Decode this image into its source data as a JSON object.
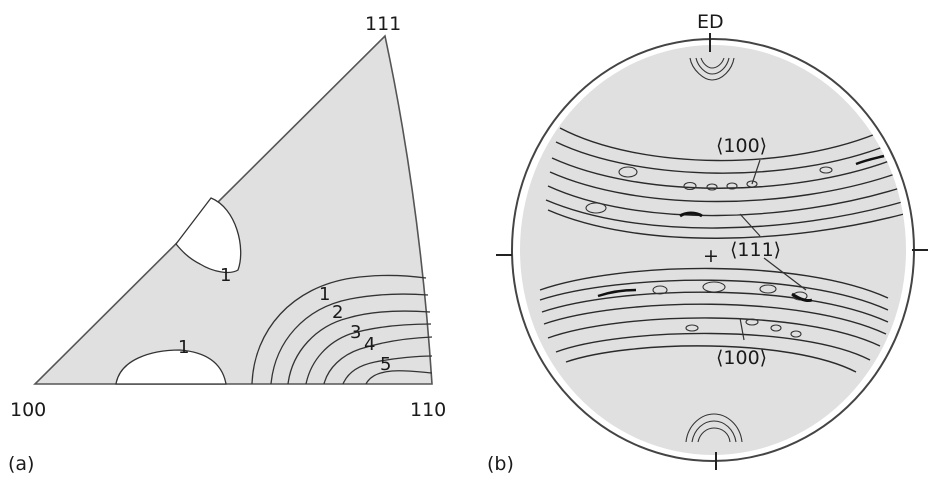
{
  "panel_a": {
    "caption": "(a)",
    "corner_100": "100",
    "corner_110": "110",
    "corner_111": "111",
    "contour_labels": [
      "1",
      "1",
      "1",
      "2",
      "3",
      "4",
      "5"
    ]
  },
  "panel_b": {
    "caption": "(b)",
    "axis_label": "ED",
    "label_100_top": "⟨100⟩",
    "label_111": "⟨111⟩",
    "label_100_bottom": "⟨100⟩",
    "center_mark": "+"
  },
  "colors": {
    "fill_gray": "#e0e0e0",
    "line": "#333333"
  }
}
